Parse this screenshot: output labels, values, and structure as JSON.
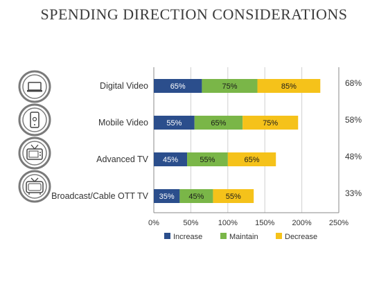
{
  "page_title": "SPENDING DIRECTION CONSIDERATIONS",
  "icons": [
    {
      "name": "laptop-icon"
    },
    {
      "name": "mobile-phone-icon"
    },
    {
      "name": "tv-icon"
    },
    {
      "name": "retro-tv-icon"
    }
  ],
  "colors": {
    "increase": "#2b4e8c",
    "maintain": "#7ab648",
    "decrease": "#f5c21a",
    "icon_ring": "#7a7a7a",
    "grid": "#cfcfcf",
    "text": "#333333"
  },
  "chart_data": {
    "type": "bar",
    "orientation": "horizontal",
    "stacked": true,
    "categories": [
      "Digital Video",
      "Mobile Video",
      "Advanced TV",
      "Broadcast/Cable OTT TV"
    ],
    "series": [
      {
        "name": "Increase",
        "values": [
          65,
          55,
          45,
          35
        ],
        "labels": [
          "65%",
          "55%",
          "45%",
          "35%"
        ]
      },
      {
        "name": "Maintain",
        "values": [
          75,
          65,
          55,
          45
        ],
        "labels": [
          "75%",
          "65%",
          "55%",
          "45%"
        ]
      },
      {
        "name": "Decrease",
        "values": [
          85,
          75,
          65,
          55
        ],
        "labels": [
          "85%",
          "75%",
          "65%",
          "55%"
        ]
      }
    ],
    "right_labels": [
      "68%",
      "58%",
      "48%",
      "33%"
    ],
    "xlim": [
      0,
      250
    ],
    "xticks": [
      0,
      50,
      100,
      150,
      200,
      250
    ],
    "xtick_labels": [
      "0%",
      "50%",
      "100%",
      "150%",
      "200%",
      "250%"
    ],
    "grid": true,
    "legend": "bottom"
  }
}
